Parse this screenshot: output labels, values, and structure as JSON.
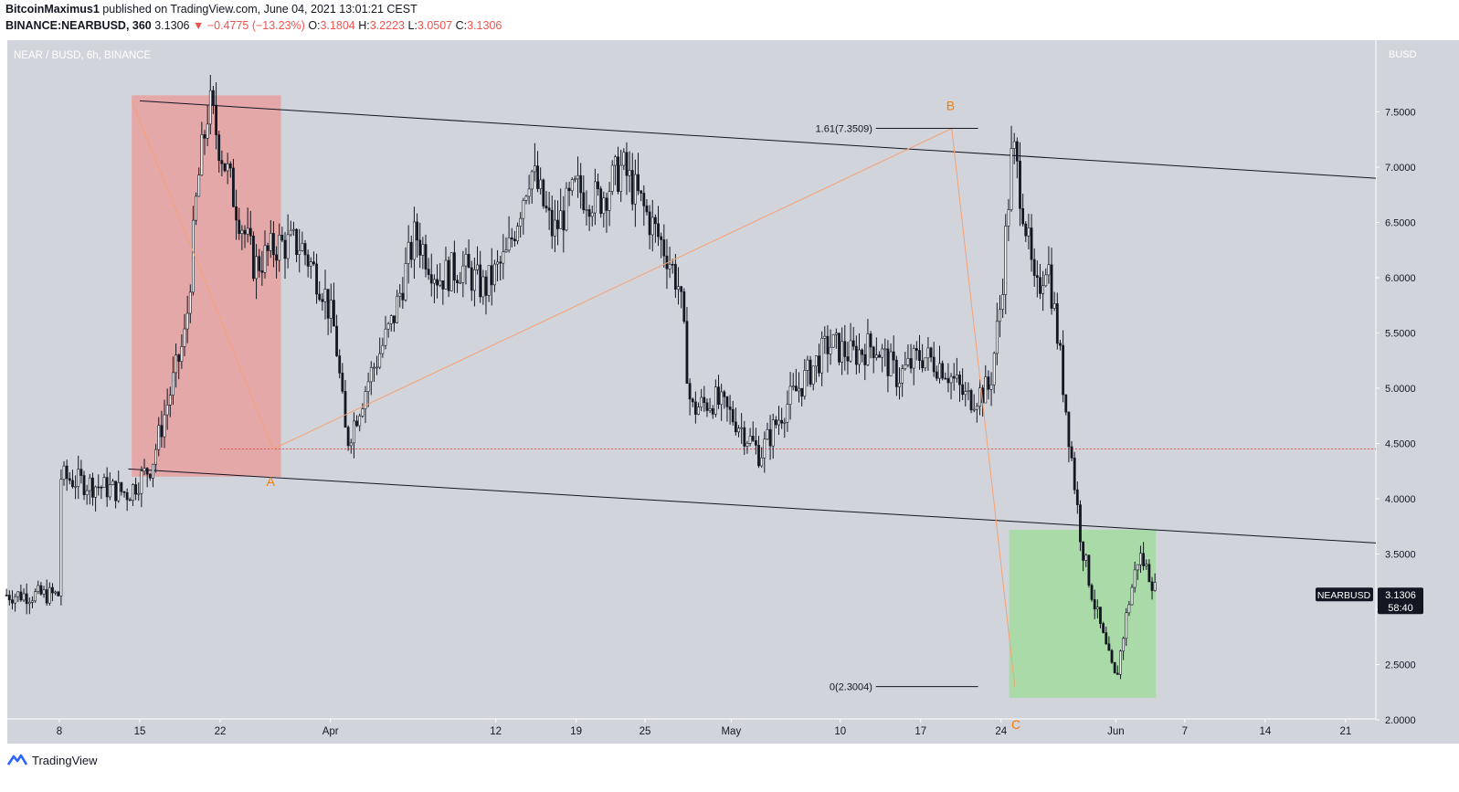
{
  "header": {
    "author": "BitcoinMaximus1",
    "published_text": "published on TradingView.com, June 04, 2021 13:01:21 CEST",
    "symbol_line": "BINANCE:NEARBUSD, 360",
    "last": "3.1306",
    "change_arrow": "▼",
    "change": "−0.4775 (−13.23%)",
    "o_label": "O:",
    "o_value": "3.1804",
    "h_label": "H:",
    "h_value": "3.2223",
    "l_label": "L:",
    "l_value": "3.0507",
    "c_label": "C:",
    "c_value": "3.1306"
  },
  "footer": {
    "brand": "TradingView"
  },
  "chart_data": {
    "type": "candlestick",
    "title": "NEAR / BUSD, 6h, BINANCE",
    "currency_label": "BUSD",
    "price_axis_ticks": [
      "7.5000",
      "7.0000",
      "6.5000",
      "6.0000",
      "5.5000",
      "5.0000",
      "4.5000",
      "4.0000",
      "3.5000",
      "3.0000",
      "2.5000",
      "2.0000"
    ],
    "time_axis_ticks": [
      "8",
      "15",
      "22",
      "Apr",
      "12",
      "19",
      "25",
      "May",
      "10",
      "17",
      "24",
      "Jun",
      "7",
      "14",
      "21"
    ],
    "ylim": [
      2.0,
      7.9
    ],
    "price_series_approx": [
      [
        0,
        4.2
      ],
      [
        6,
        4.05
      ],
      [
        8,
        4.3
      ],
      [
        11,
        5.5
      ],
      [
        12,
        6.8
      ],
      [
        13,
        7.58
      ],
      [
        15,
        6.8
      ],
      [
        17,
        6.1
      ],
      [
        19,
        6.3
      ],
      [
        21,
        6.3
      ],
      [
        23,
        5.9
      ],
      [
        24,
        5.5
      ],
      [
        25,
        4.5
      ],
      [
        27,
        5.1
      ],
      [
        29,
        5.6
      ],
      [
        31,
        6.4
      ],
      [
        33,
        6.0
      ],
      [
        35,
        6.1
      ],
      [
        37,
        5.9
      ],
      [
        39,
        6.2
      ],
      [
        41,
        7.0
      ],
      [
        43,
        6.4
      ],
      [
        45,
        6.8
      ],
      [
        47,
        6.7
      ],
      [
        49,
        7.0
      ],
      [
        51,
        6.6
      ],
      [
        53,
        6.2
      ],
      [
        54,
        5.9
      ],
      [
        55,
        4.8
      ],
      [
        57,
        4.9
      ],
      [
        59,
        4.7
      ],
      [
        61,
        4.4
      ],
      [
        63,
        4.8
      ],
      [
        65,
        5.1
      ],
      [
        67,
        5.4
      ],
      [
        69,
        5.3
      ],
      [
        71,
        5.4
      ],
      [
        73,
        5.1
      ],
      [
        75,
        5.3
      ],
      [
        77,
        5.2
      ],
      [
        79,
        4.9
      ],
      [
        81,
        5.0
      ],
      [
        82,
        5.8
      ],
      [
        83,
        7.2
      ],
      [
        84,
        6.6
      ],
      [
        85,
        5.8
      ],
      [
        86,
        6.2
      ],
      [
        87,
        5.4
      ],
      [
        88,
        4.5
      ],
      [
        89,
        3.6
      ],
      [
        90,
        3.1
      ],
      [
        91,
        2.7
      ],
      [
        92,
        2.35
      ],
      [
        93,
        3.0
      ],
      [
        94,
        3.5
      ],
      [
        95,
        3.3
      ],
      [
        96,
        3.0
      ],
      [
        97,
        2.7
      ],
      [
        98,
        3.2
      ],
      [
        99,
        3.3
      ],
      [
        100,
        3.5
      ],
      [
        101,
        3.6
      ],
      [
        102,
        3.13
      ]
    ],
    "price_label": {
      "symbol": "NEARBUSD",
      "price": "3.1306",
      "countdown": "58:40"
    },
    "wave_labels": [
      "A",
      "B",
      "C"
    ],
    "fib_labels": [
      "1.61(7.3509)",
      "0(2.3004)"
    ],
    "support_level": 4.45,
    "channel_top": [
      [
        13,
        7.6
      ],
      [
        131,
        6.9
      ]
    ],
    "channel_bottom": [
      [
        13,
        4.27
      ],
      [
        131,
        3.6
      ]
    ],
    "colors": {
      "background": "#d2d4dc",
      "candle": "#131722",
      "wave_line": "#f7a072",
      "wave_label": "#f57c00",
      "red_zone": "#e8a0a0",
      "green_zone": "#a5dba0",
      "support_line": "#ef5350",
      "price_label_bg": "#131722"
    }
  }
}
